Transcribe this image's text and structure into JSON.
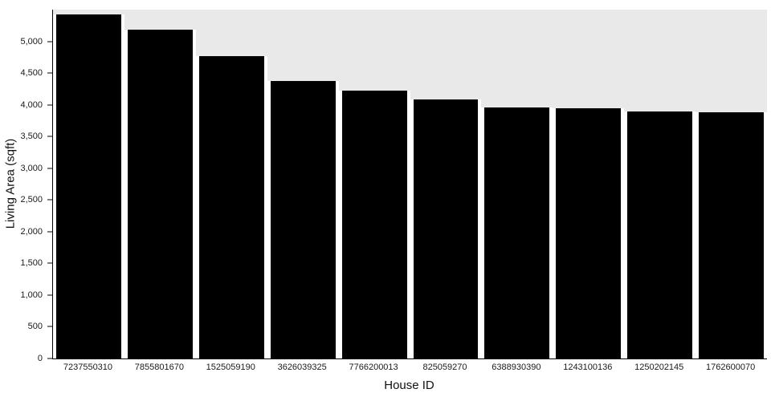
{
  "chart_data": {
    "type": "bar",
    "title": "",
    "xlabel": "House ID",
    "ylabel": "Living Area (sqft)",
    "categories": [
      "7237550310",
      "7855801670",
      "1525059190",
      "3626039325",
      "7766200013",
      "825059270",
      "6388930390",
      "1243100136",
      "1250202145",
      "1762600070"
    ],
    "values": [
      5420,
      5180,
      4770,
      4380,
      4220,
      4080,
      3960,
      3950,
      3900,
      3880
    ],
    "ylim": [
      0,
      5500
    ],
    "yticks": [
      0,
      500,
      1000,
      1500,
      2000,
      2500,
      3000,
      3500,
      4000,
      4500,
      5000
    ],
    "ytick_labels": [
      "0",
      "500",
      "1,000",
      "1,500",
      "2,000",
      "2,500",
      "3,000",
      "3,500",
      "4,000",
      "4,500",
      "5,000"
    ],
    "bar_color": "#000000",
    "plot_bg": "#e9e9e9",
    "axis_color": "#000000",
    "grid": false,
    "legend": false
  }
}
